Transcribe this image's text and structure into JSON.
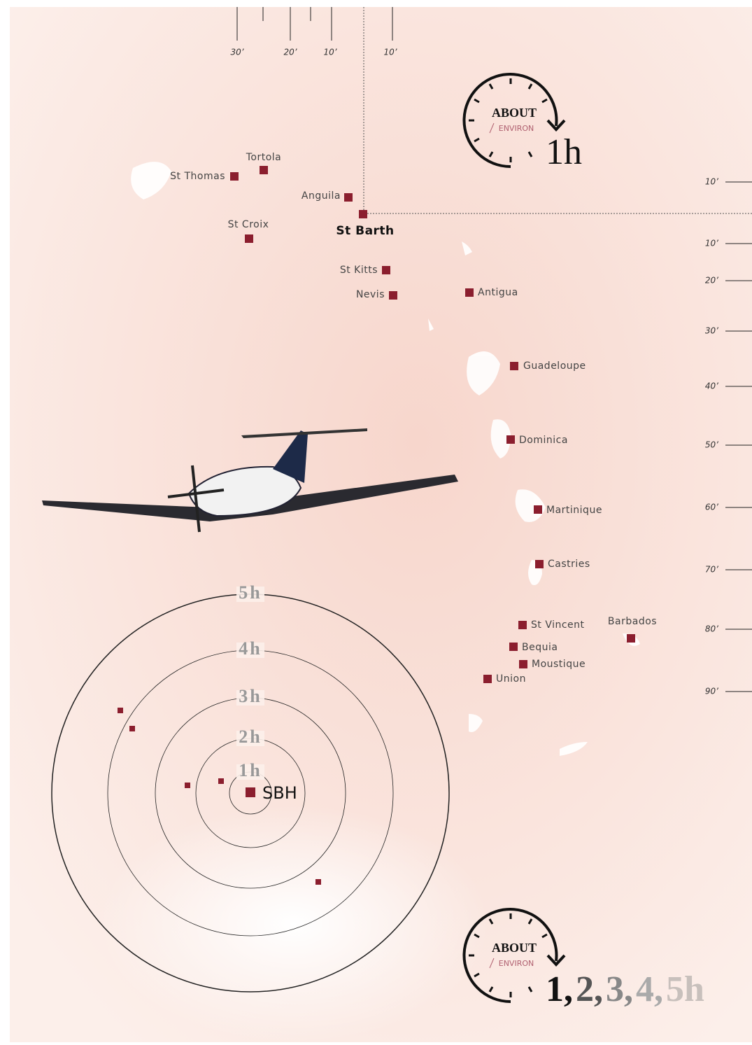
{
  "scale_top": {
    "labels": [
      "30’",
      "20’",
      "10’",
      "10’"
    ]
  },
  "scale_right": {
    "labels": [
      "10’",
      "10’",
      "20’",
      "30’",
      "40’",
      "50’",
      "60’",
      "70’",
      "80’",
      "90’"
    ]
  },
  "islands": [
    {
      "label": "St Thomas"
    },
    {
      "label": "Tortola"
    },
    {
      "label": "Anguila"
    },
    {
      "label": "St Croix"
    },
    {
      "label": "St Barth"
    },
    {
      "label": "St Kitts"
    },
    {
      "label": "Nevis"
    },
    {
      "label": "Antigua"
    },
    {
      "label": "Guadeloupe"
    },
    {
      "label": "Dominica"
    },
    {
      "label": "Martinique"
    },
    {
      "label": "Castries"
    },
    {
      "label": "St Vincent"
    },
    {
      "label": "Bequia"
    },
    {
      "label": "Moustique"
    },
    {
      "label": "Union"
    },
    {
      "label": "Barbados"
    }
  ],
  "clock_top": {
    "about": "ABOUT",
    "environ": "ENVIRON",
    "hours": "1h"
  },
  "rings": {
    "labels": [
      "5h",
      "4h",
      "3h",
      "2h",
      "1h"
    ],
    "center": "SBH"
  },
  "clock_bottom": {
    "about": "ABOUT",
    "environ": "ENVIRON",
    "hours": [
      "1,",
      "2,",
      "3,",
      "4,",
      "5h"
    ]
  }
}
